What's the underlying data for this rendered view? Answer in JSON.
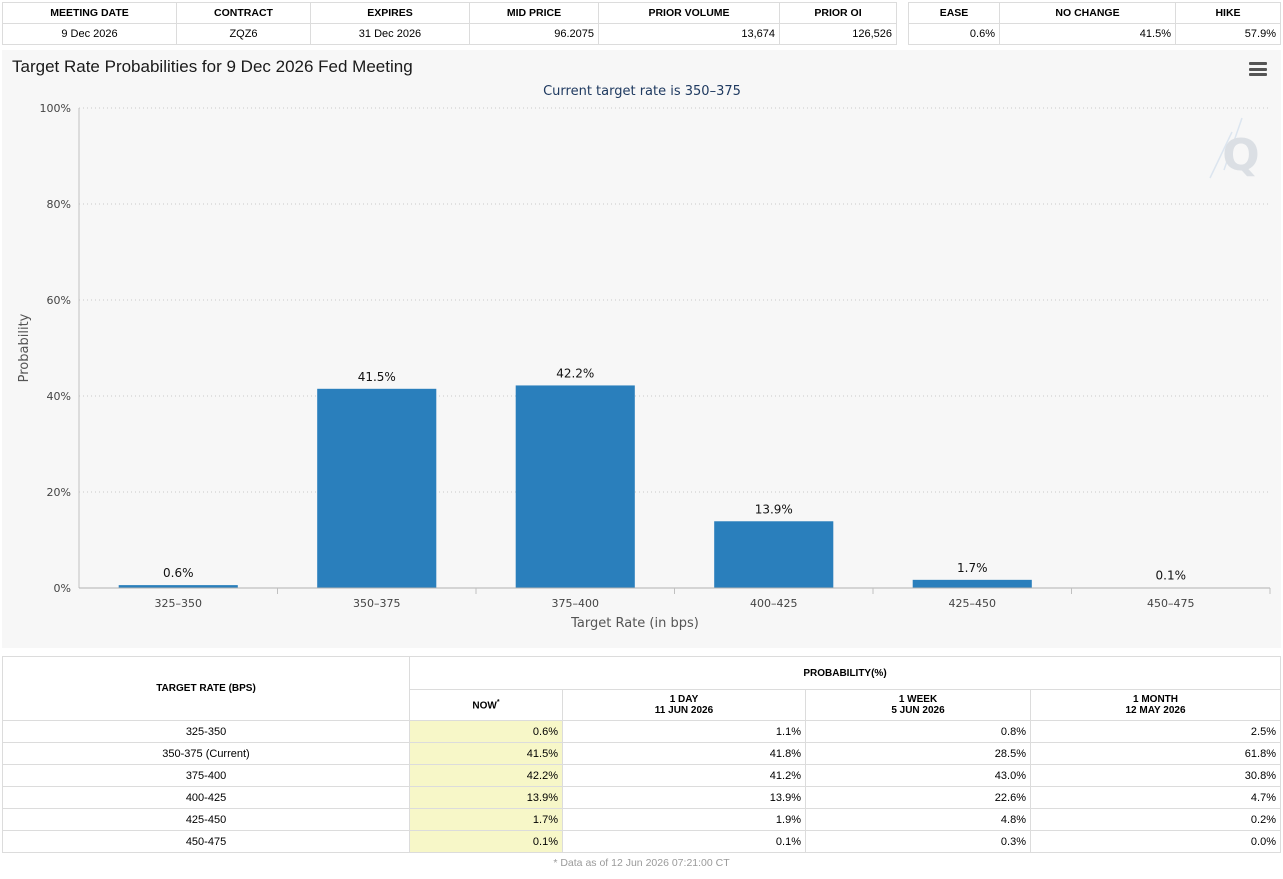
{
  "meeting_table": {
    "headers": [
      "MEETING DATE",
      "CONTRACT",
      "EXPIRES",
      "MID PRICE",
      "PRIOR VOLUME",
      "PRIOR OI"
    ],
    "row": [
      "9 Dec 2026",
      "ZQZ6",
      "31 Dec 2026",
      "96.2075",
      "13,674",
      "126,526"
    ]
  },
  "summary_table": {
    "headers": [
      "EASE",
      "NO CHANGE",
      "HIKE"
    ],
    "row": [
      "0.6%",
      "41.5%",
      "57.9%"
    ]
  },
  "chart_title": "Target Rate Probabilities for 9 Dec 2026 Fed Meeting",
  "watermark": "Q",
  "chart_data": {
    "type": "bar",
    "title": "Target Rate Probabilities for 9 Dec 2026 Fed Meeting",
    "subtitle": "Current target rate is 350–375",
    "xlabel": "Target Rate (in bps)",
    "ylabel": "Probability",
    "categories": [
      "325–350",
      "350–375",
      "375–400",
      "400–425",
      "425–450",
      "450–475"
    ],
    "values": [
      0.6,
      41.5,
      42.2,
      13.9,
      1.7,
      0.1
    ],
    "data_labels": [
      "0.6%",
      "41.5%",
      "42.2%",
      "13.9%",
      "1.7%",
      "0.1%"
    ],
    "ylim": [
      0,
      100
    ],
    "yticks": [
      0,
      20,
      40,
      60,
      80,
      100
    ],
    "ytick_labels": [
      "0%",
      "20%",
      "40%",
      "60%",
      "80%",
      "100%"
    ],
    "grid": true,
    "bar_color": "#2a7fbc"
  },
  "history_table": {
    "rate_header": "TARGET RATE (BPS)",
    "prob_header": "PROBABILITY(%)",
    "columns": [
      {
        "label": "NOW",
        "mark": "*",
        "sub": ""
      },
      {
        "label": "1 DAY",
        "sub": "11 JUN 2026"
      },
      {
        "label": "1 WEEK",
        "sub": "5 JUN 2026"
      },
      {
        "label": "1 MONTH",
        "sub": "12 MAY 2026"
      }
    ],
    "rows": [
      {
        "rate": "325-350",
        "vals": [
          "0.6%",
          "1.1%",
          "0.8%",
          "2.5%"
        ]
      },
      {
        "rate": "350-375 (Current)",
        "vals": [
          "41.5%",
          "41.8%",
          "28.5%",
          "61.8%"
        ]
      },
      {
        "rate": "375-400",
        "vals": [
          "42.2%",
          "41.2%",
          "43.0%",
          "30.8%"
        ]
      },
      {
        "rate": "400-425",
        "vals": [
          "13.9%",
          "13.9%",
          "22.6%",
          "4.7%"
        ]
      },
      {
        "rate": "425-450",
        "vals": [
          "1.7%",
          "1.9%",
          "4.8%",
          "0.2%"
        ]
      },
      {
        "rate": "450-475",
        "vals": [
          "0.1%",
          "0.1%",
          "0.3%",
          "0.0%"
        ]
      }
    ],
    "footnote": "* Data as of 12 Jun 2026 07:21:00 CT"
  }
}
